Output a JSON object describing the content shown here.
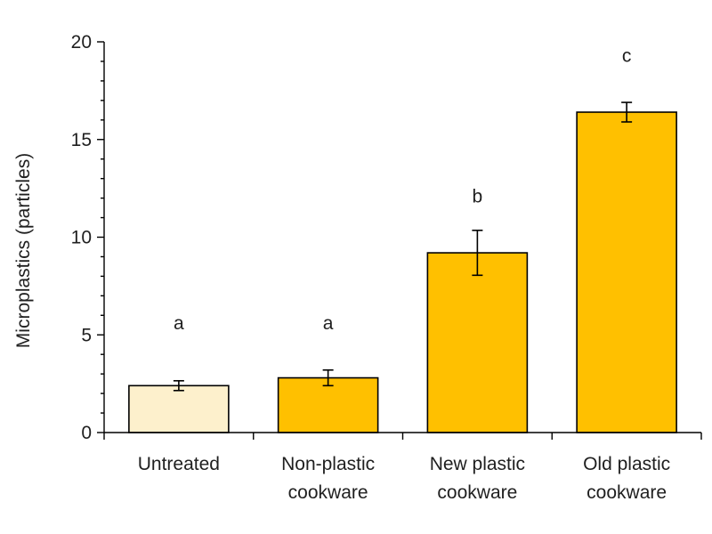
{
  "chart_data": {
    "type": "bar",
    "title": "",
    "xlabel": "",
    "ylabel": "Microplastics (particles)",
    "ylim": [
      0,
      20
    ],
    "yticks": [
      0,
      5,
      10,
      15,
      20
    ],
    "y_minor_step": 1,
    "grid": false,
    "legend": "none",
    "categories": [
      [
        "Untreated"
      ],
      [
        "Non-plastic",
        "cookware"
      ],
      [
        "New plastic",
        "cookware"
      ],
      [
        "Old plastic",
        "cookware"
      ]
    ],
    "values": [
      2.4,
      2.8,
      9.2,
      16.4
    ],
    "errors": [
      0.25,
      0.4,
      1.15,
      0.5
    ],
    "significance_letters": [
      "a",
      "a",
      "b",
      "c"
    ],
    "letter_y": [
      5.6,
      5.6,
      12.1,
      19.3
    ],
    "bar_colors": [
      "#fdf0cc",
      "#ffc000",
      "#ffc000",
      "#ffc000"
    ],
    "bar_edge_color": "#000000"
  }
}
